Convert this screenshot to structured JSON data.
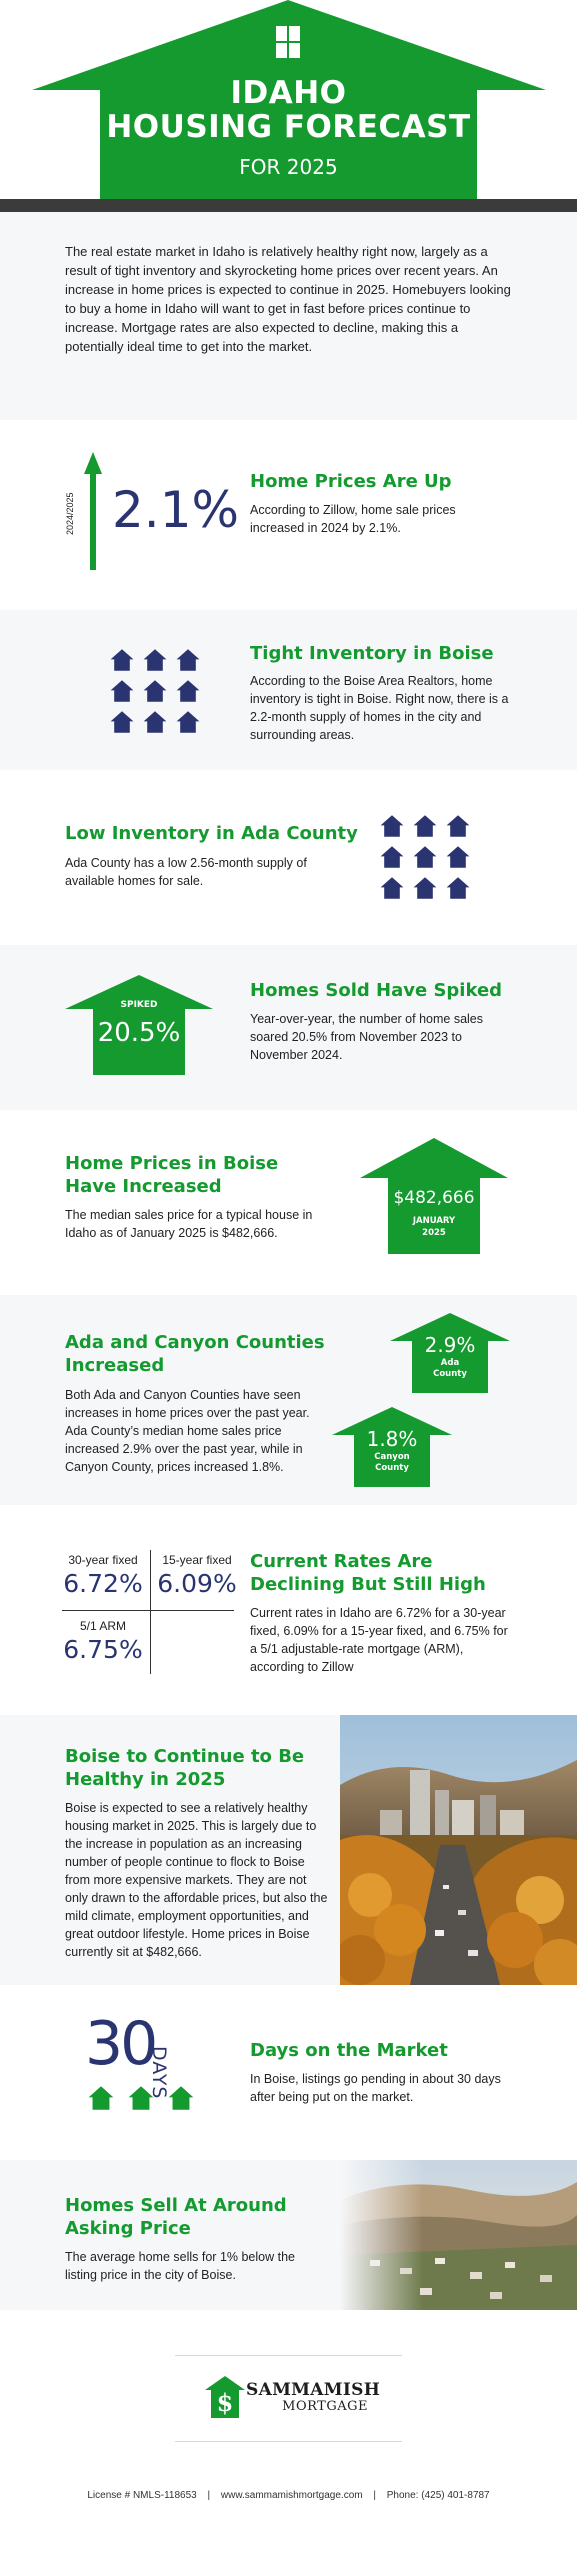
{
  "header": {
    "title_line1": "IDAHO",
    "title_line2": "HOUSING FORECAST",
    "subtitle": "FOR 2025",
    "icon": "window-icon"
  },
  "intro": {
    "text": "The real estate market in Idaho is relatively healthy right now, largely as a result of tight inventory and skyrocketing home prices over recent years. An increase in home prices is expected to continue in 2025. Homebuyers looking to buy a home in Idaho will want to get in fast before prices continue to increase. Mortgage rates are also expected to decline, making this a potentially ideal time to get into the market."
  },
  "home_prices_up": {
    "axis_label": "2024/2025",
    "value": "2.1%",
    "title": "Home Prices Are Up",
    "body": "According to Zillow, home sale prices increased in 2024 by 2.1%."
  },
  "tight_inventory": {
    "title": "Tight Inventory in Boise",
    "body": "According to the Boise Area Realtors, home inventory is tight in Boise. Right now, there is a 2.2-month supply of homes in the city and surrounding areas.",
    "icon": "house-grid-icon"
  },
  "low_inventory": {
    "title": "Low Inventory in Ada County",
    "body": "Ada County has a low 2.56-month supply of available homes for sale.",
    "icon": "house-grid-icon"
  },
  "spiked": {
    "badge": "SPIKED",
    "value": "20.5%",
    "title": "Homes Sold Have Spiked",
    "body": "Year-over-year, the number of home sales soared 20.5% from November 2023 to November 2024."
  },
  "boise_prices": {
    "title": "Home Prices in Boise Have Increased",
    "body": "The median sales price for a typical house in Idaho as of January 2025 is $482,666.",
    "value": "$482,666",
    "caption_line1": "JANUARY",
    "caption_line2": "2025"
  },
  "counties": {
    "title": "Ada and Canyon Counties Increased",
    "body": "Both Ada and Canyon Counties have seen increases in home prices over the past year. Ada County’s median home sales price increased 2.9% over the past year, while in Canyon County, prices increased 1.8%.",
    "ada_value": "2.9%",
    "ada_label_line1": "Ada",
    "ada_label_line2": "County",
    "canyon_value": "1.8%",
    "canyon_label_line1": "Canyon",
    "canyon_label_line2": "County"
  },
  "rates": {
    "fixed30_label": "30-year fixed",
    "fixed30_value": "6.72%",
    "fixed15_label": "15-year fixed",
    "fixed15_value": "6.09%",
    "arm_label": "5/1 ARM",
    "arm_value": "6.75%",
    "title": "Current Rates Are Declining But Still High",
    "body": "Current rates in Idaho are 6.72% for a 30-year fixed, 6.09% for a 15-year fixed, and 6.75% for a 5/1 adjustable-rate mortgage (ARM), according to Zillow"
  },
  "healthy": {
    "title": "Boise to Continue to Be Healthy in 2025",
    "body": "Boise is expected to see a relatively healthy housing market in 2025. This is largely due to the increase in population as an increasing number of people continue to flock to Boise from more expensive markets. They are not only drawn to the affordable prices, but also the mild climate, employment opportunities, and great outdoor lifestyle. Home prices in Boise currently sit at $482,666."
  },
  "days": {
    "number": "30",
    "unit": "DAYS",
    "title": "Days on the Market",
    "body": "In Boise, listings go pending in about 30 days after being put on the market."
  },
  "asking": {
    "title": "Homes Sell At Around Asking Price",
    "body": "The average home sells for 1% below the listing price in the city of Boise."
  },
  "logo": {
    "line1": "SAMMAMISH",
    "line2": "MORTGAGE"
  },
  "footer": {
    "license": "License # NMLS-118653",
    "website": "www.sammamishmortgage.com",
    "phone": "Phone: (425) 401-8787",
    "separator": "|"
  },
  "colors": {
    "green": "#149a2f",
    "navy": "#2a3470",
    "dark_band": "#3b3b3b",
    "light_gray": "#f6f7f9"
  }
}
